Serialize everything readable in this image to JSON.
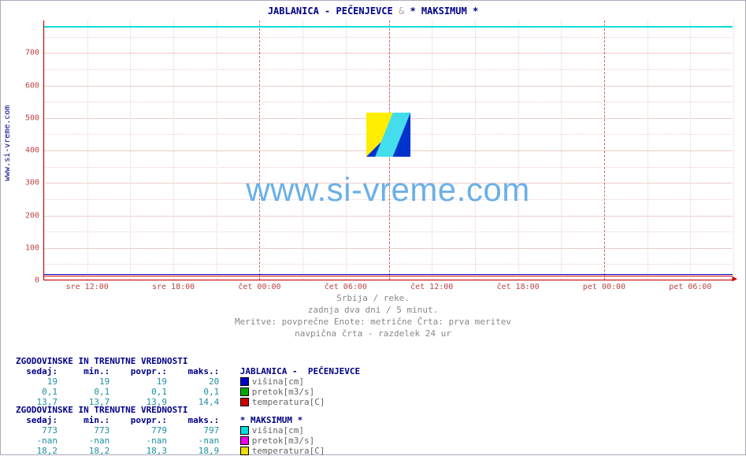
{
  "title_a": "JABLANICA -  PEČENJEVCE",
  "title_b": "* MAKSIMUM *",
  "amp": "&",
  "ylabel": "www.si-vreme.com",
  "chart": {
    "type": "line",
    "ylim": [
      0,
      800
    ],
    "yticks": [
      0,
      100,
      200,
      300,
      400,
      500,
      600,
      700
    ],
    "xticks": [
      "sre 12:00",
      "sre 18:00",
      "čet 00:00",
      "čet 06:00",
      "čet 12:00",
      "čet 18:00",
      "pet 00:00",
      "pet 06:00"
    ],
    "xmain_idx": [
      2,
      6
    ],
    "grid_color": "#eecccc",
    "axis_color": "#cc0000",
    "bg": "#ffffff",
    "series": [
      {
        "name": "visina_max",
        "color": "#00dddd",
        "y": 780,
        "width": 2
      },
      {
        "name": "temp_jab",
        "color": "#cc0000",
        "y": 14,
        "width": 1
      },
      {
        "name": "temp_max",
        "color": "#eedd00",
        "y": 18,
        "width": 1
      },
      {
        "name": "visina_jab",
        "color": "#0000cc",
        "y": 19,
        "width": 1
      }
    ]
  },
  "watermark": "www.si-vreme.com",
  "caption": {
    "l1": "Srbija / reke.",
    "l2": "zadnja dva dni / 5 minut.",
    "l3": "Meritve: povprečne  Enote: metrične  Črta: prva meritev",
    "l4": "navpična črta - razdelek 24 ur"
  },
  "legend_header": "ZGODOVINSKE IN TRENUTNE VREDNOSTI",
  "legend_cols": {
    "c0": "sedaj:",
    "c1": "min.:",
    "c2": "povpr.:",
    "c3": "maks.:"
  },
  "block1": {
    "name": "JABLANICA -  PEČENJEVCE",
    "rows": [
      {
        "sw": "#0000cc",
        "label": "višina[cm]",
        "v": [
          "19",
          "19",
          "19",
          "20"
        ]
      },
      {
        "sw": "#00aa00",
        "label": "pretok[m3/s]",
        "v": [
          "0,1",
          "0,1",
          "0,1",
          "0,1"
        ]
      },
      {
        "sw": "#cc0000",
        "label": "temperatura[C]",
        "v": [
          "13,7",
          "13,7",
          "13,9",
          "14,4"
        ]
      }
    ]
  },
  "block2": {
    "name": "* MAKSIMUM *",
    "rows": [
      {
        "sw": "#00dddd",
        "label": "višina[cm]",
        "v": [
          "773",
          "773",
          "779",
          "797"
        ]
      },
      {
        "sw": "#ee00ee",
        "label": "pretok[m3/s]",
        "v": [
          "-nan",
          "-nan",
          "-nan",
          "-nan"
        ]
      },
      {
        "sw": "#eedd00",
        "label": "temperatura[C]",
        "v": [
          "18,2",
          "18,2",
          "18,3",
          "18,9"
        ]
      }
    ]
  }
}
